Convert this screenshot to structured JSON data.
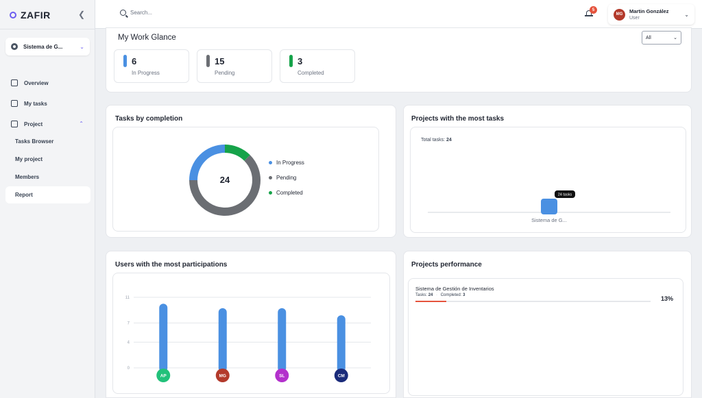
{
  "sidebar": {
    "brand": "ZAFIR",
    "workspace": "Sistema de G...",
    "items": [
      {
        "label": "Overview"
      },
      {
        "label": "My tasks"
      },
      {
        "label": "Project"
      }
    ],
    "project_items": [
      {
        "label": "Tasks Browser"
      },
      {
        "label": "My project"
      },
      {
        "label": "Members"
      },
      {
        "label": "Report"
      }
    ]
  },
  "topbar": {
    "search_placeholder": "Search...",
    "notification_count": "5",
    "user": {
      "initials": "MG",
      "name": "Martin González",
      "role": "User"
    }
  },
  "glance": {
    "title": "My Work Glance",
    "filter": "All",
    "stats": [
      {
        "value": "6",
        "label": "In Progress",
        "color": "#4a90e2"
      },
      {
        "value": "15",
        "label": "Pending",
        "color": "#6b6e73"
      },
      {
        "value": "3",
        "label": "Completed",
        "color": "#16a34a"
      }
    ]
  },
  "completion": {
    "title": "Tasks by completion",
    "total": "24",
    "legend": [
      {
        "label": "In Progress",
        "color": "#4a90e2"
      },
      {
        "label": "Pending",
        "color": "#6b6e73"
      },
      {
        "label": "Completed",
        "color": "#16a34a"
      }
    ]
  },
  "projects_tasks": {
    "title": "Projects with the most tasks",
    "total_label": "Total tasks:",
    "total_value": "24",
    "tooltip": "24 tasks",
    "category": "Sistema de G..."
  },
  "participation": {
    "title": "Users with the most participations",
    "users": [
      {
        "initials": "AP",
        "color": "#22c17a"
      },
      {
        "initials": "MG",
        "color": "#b33a2b"
      },
      {
        "initials": "SL",
        "color": "#b331cc"
      },
      {
        "initials": "CM",
        "color": "#1a2b7a"
      }
    ]
  },
  "performance": {
    "title": "Projects performance",
    "project_name": "Sistema de Gestión de Inventarios",
    "tasks_label": "Tasks:",
    "tasks_value": "24",
    "sep": "·",
    "completed_label": "Completed:",
    "completed_value": "3",
    "percent": "13%",
    "progress": 0.13
  },
  "chart_data": [
    {
      "type": "pie",
      "title": "Tasks by completion",
      "categories": [
        "In Progress",
        "Pending",
        "Completed"
      ],
      "values": [
        6,
        15,
        3
      ],
      "colors": [
        "#4a90e2",
        "#6b6e73",
        "#16a34a"
      ],
      "center_label": "24",
      "legend": "right"
    },
    {
      "type": "bar",
      "title": "Projects with the most tasks",
      "categories": [
        "Sistema de G..."
      ],
      "values": [
        24
      ],
      "annotation": "24 tasks"
    },
    {
      "type": "bar",
      "title": "Users with the most participations",
      "categories": [
        "AP",
        "MG",
        "SL",
        "CM"
      ],
      "values": [
        10,
        9.3,
        9.3,
        8.2
      ],
      "yticks": [
        "0",
        "4",
        "7",
        "11"
      ],
      "ylim": [
        0,
        11
      ],
      "grid": true
    }
  ]
}
